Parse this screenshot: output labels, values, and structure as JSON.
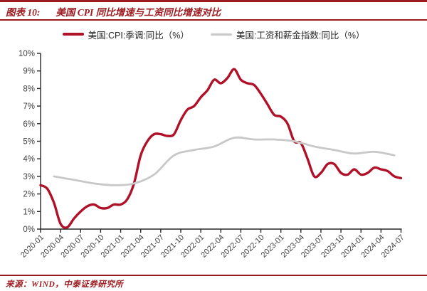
{
  "header": {
    "chart_label": "图表 10:",
    "title": "美国 CPI 同比增速与工资同比增速对比"
  },
  "footer": {
    "source_text": "来源：WIND，中泰证券研究所"
  },
  "colors": {
    "accent_red": "#9c1b20",
    "cpi_line": "#b01128",
    "wage_line": "#c8c8c8",
    "axis": "#262626",
    "tick_text": "#404040"
  },
  "chart_data": {
    "type": "line",
    "title": "美国 CPI 同比增速与工资同比增速对比",
    "grid": false,
    "legend_position": "top",
    "ylabel": "",
    "xlabel": "",
    "ylim": [
      0,
      10
    ],
    "y_ticks": [
      "0%",
      "1%",
      "2%",
      "3%",
      "4%",
      "5%",
      "6%",
      "7%",
      "8%",
      "9%",
      "10%"
    ],
    "x_tick_labels": [
      "2020-01",
      "2020-04",
      "2020-07",
      "2020-10",
      "2021-01",
      "2021-04",
      "2021-07",
      "2021-10",
      "2022-01",
      "2022-04",
      "2022-07",
      "2022-10",
      "2023-01",
      "2023-04",
      "2023-07",
      "2023-10",
      "2024-01",
      "2024-04",
      "2024-07"
    ],
    "x_months_total": 54,
    "series": [
      {
        "id": "cpi-line",
        "name": "美国:CPI:季调:同比（%）",
        "color": "#b01128",
        "stroke_width": 3.4,
        "swatch_height": 4,
        "frequency": "monthly",
        "x_start": "2020-01",
        "start_month_index": 0,
        "step_months": 1,
        "values": [
          2.5,
          2.3,
          1.5,
          0.3,
          0.1,
          0.6,
          1.0,
          1.3,
          1.4,
          1.2,
          1.2,
          1.4,
          1.4,
          1.7,
          2.6,
          4.2,
          5.0,
          5.4,
          5.4,
          5.3,
          5.4,
          6.2,
          6.8,
          7.0,
          7.5,
          7.9,
          8.5,
          8.3,
          8.6,
          9.1,
          8.5,
          8.3,
          8.2,
          7.7,
          7.1,
          6.5,
          6.4,
          6.0,
          5.0,
          4.9,
          4.0,
          3.0,
          3.2,
          3.7,
          3.7,
          3.2,
          3.1,
          3.4,
          3.1,
          3.2,
          3.5,
          3.4,
          3.3,
          3.0,
          2.9
        ]
      },
      {
        "id": "wage-line",
        "name": "美国:工资和薪金指数:同比（%）",
        "color": "#c8c8c8",
        "stroke_width": 2.8,
        "swatch_height": 3,
        "frequency": "quarterly",
        "x_start": "2020-03",
        "start_month_index": 2,
        "step_months": 3,
        "values": [
          3.0,
          2.8,
          2.6,
          2.5,
          2.6,
          3.1,
          4.2,
          4.5,
          4.7,
          5.2,
          5.1,
          5.1,
          5.0,
          4.7,
          4.5,
          4.3,
          4.4,
          4.2
        ]
      }
    ]
  }
}
